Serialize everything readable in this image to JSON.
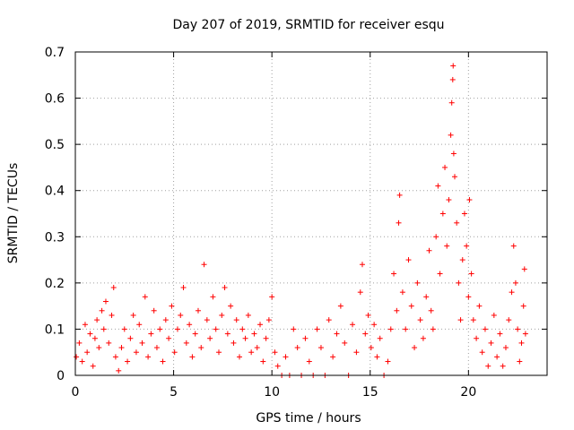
{
  "chart_data": {
    "type": "scatter",
    "title": "Day 207 of 2019, SRMTID for receiver esqu",
    "xlabel": "GPS time / hours",
    "ylabel": "SRMTID / TECUs",
    "xlim": [
      0,
      24
    ],
    "ylim": [
      0,
      0.7
    ],
    "x_ticks": [
      0,
      5,
      10,
      15,
      20
    ],
    "y_ticks": [
      0,
      0.1,
      0.2,
      0.3,
      0.4,
      0.5,
      0.6,
      0.7
    ],
    "x_tick_labels": [
      "0",
      "5",
      "10",
      "15",
      "20"
    ],
    "y_tick_labels": [
      "0",
      "0.1",
      "0.2",
      "0.3",
      "0.4",
      "0.5",
      "0.6",
      "0.7"
    ],
    "marker": "+",
    "color": "#ff0000",
    "grid": true,
    "series": [
      {
        "name": "SRMTID",
        "points": [
          [
            0.05,
            0.04
          ],
          [
            0.2,
            0.07
          ],
          [
            0.35,
            0.03
          ],
          [
            0.5,
            0.11
          ],
          [
            0.6,
            0.05
          ],
          [
            0.75,
            0.09
          ],
          [
            0.9,
            0.02
          ],
          [
            1.0,
            0.08
          ],
          [
            1.1,
            0.12
          ],
          [
            1.2,
            0.06
          ],
          [
            1.35,
            0.14
          ],
          [
            1.45,
            0.1
          ],
          [
            1.55,
            0.16
          ],
          [
            1.7,
            0.07
          ],
          [
            1.85,
            0.13
          ],
          [
            1.95,
            0.19
          ],
          [
            2.05,
            0.04
          ],
          [
            2.2,
            0.01
          ],
          [
            2.35,
            0.06
          ],
          [
            2.5,
            0.1
          ],
          [
            2.65,
            0.03
          ],
          [
            2.8,
            0.08
          ],
          [
            2.95,
            0.13
          ],
          [
            3.1,
            0.05
          ],
          [
            3.25,
            0.11
          ],
          [
            3.4,
            0.07
          ],
          [
            3.55,
            0.17
          ],
          [
            3.7,
            0.04
          ],
          [
            3.85,
            0.09
          ],
          [
            4.0,
            0.14
          ],
          [
            4.15,
            0.06
          ],
          [
            4.3,
            0.1
          ],
          [
            4.45,
            0.03
          ],
          [
            4.6,
            0.12
          ],
          [
            4.75,
            0.08
          ],
          [
            4.9,
            0.15
          ],
          [
            5.05,
            0.05
          ],
          [
            5.2,
            0.1
          ],
          [
            5.35,
            0.13
          ],
          [
            5.5,
            0.19
          ],
          [
            5.65,
            0.07
          ],
          [
            5.8,
            0.11
          ],
          [
            5.95,
            0.04
          ],
          [
            6.1,
            0.09
          ],
          [
            6.25,
            0.14
          ],
          [
            6.4,
            0.06
          ],
          [
            6.55,
            0.24
          ],
          [
            6.7,
            0.12
          ],
          [
            6.85,
            0.08
          ],
          [
            7.0,
            0.17
          ],
          [
            7.15,
            0.1
          ],
          [
            7.3,
            0.05
          ],
          [
            7.45,
            0.13
          ],
          [
            7.6,
            0.19
          ],
          [
            7.75,
            0.09
          ],
          [
            7.9,
            0.15
          ],
          [
            8.05,
            0.07
          ],
          [
            8.2,
            0.12
          ],
          [
            8.35,
            0.04
          ],
          [
            8.5,
            0.1
          ],
          [
            8.65,
            0.08
          ],
          [
            8.8,
            0.13
          ],
          [
            8.95,
            0.05
          ],
          [
            9.1,
            0.09
          ],
          [
            9.25,
            0.06
          ],
          [
            9.4,
            0.11
          ],
          [
            9.55,
            0.03
          ],
          [
            9.7,
            0.08
          ],
          [
            9.85,
            0.12
          ],
          [
            10.0,
            0.17
          ],
          [
            10.15,
            0.05
          ],
          [
            10.3,
            0.02
          ],
          [
            10.5,
            0.0
          ],
          [
            10.7,
            0.04
          ],
          [
            10.9,
            0.0
          ],
          [
            11.1,
            0.1
          ],
          [
            11.3,
            0.06
          ],
          [
            11.5,
            0.0
          ],
          [
            11.7,
            0.08
          ],
          [
            11.9,
            0.03
          ],
          [
            12.1,
            0.0
          ],
          [
            12.3,
            0.1
          ],
          [
            12.5,
            0.06
          ],
          [
            12.7,
            0.0
          ],
          [
            12.9,
            0.12
          ],
          [
            13.1,
            0.04
          ],
          [
            13.3,
            0.09
          ],
          [
            13.5,
            0.15
          ],
          [
            13.7,
            0.07
          ],
          [
            13.9,
            0.0
          ],
          [
            14.1,
            0.11
          ],
          [
            14.3,
            0.05
          ],
          [
            14.5,
            0.18
          ],
          [
            14.6,
            0.24
          ],
          [
            14.75,
            0.09
          ],
          [
            14.9,
            0.13
          ],
          [
            15.05,
            0.06
          ],
          [
            15.2,
            0.11
          ],
          [
            15.35,
            0.04
          ],
          [
            15.5,
            0.08
          ],
          [
            15.7,
            0.0
          ],
          [
            15.9,
            0.03
          ],
          [
            16.05,
            0.1
          ],
          [
            16.2,
            0.22
          ],
          [
            16.35,
            0.14
          ],
          [
            16.45,
            0.33
          ],
          [
            16.5,
            0.39
          ],
          [
            16.65,
            0.18
          ],
          [
            16.8,
            0.1
          ],
          [
            16.95,
            0.25
          ],
          [
            17.1,
            0.15
          ],
          [
            17.25,
            0.06
          ],
          [
            17.4,
            0.2
          ],
          [
            17.55,
            0.12
          ],
          [
            17.7,
            0.08
          ],
          [
            17.85,
            0.17
          ],
          [
            18.0,
            0.27
          ],
          [
            18.1,
            0.14
          ],
          [
            18.2,
            0.1
          ],
          [
            18.35,
            0.3
          ],
          [
            18.45,
            0.41
          ],
          [
            18.55,
            0.22
          ],
          [
            18.7,
            0.35
          ],
          [
            18.8,
            0.45
          ],
          [
            18.9,
            0.28
          ],
          [
            19.0,
            0.38
          ],
          [
            19.1,
            0.52
          ],
          [
            19.15,
            0.59
          ],
          [
            19.2,
            0.64
          ],
          [
            19.22,
            0.67
          ],
          [
            19.25,
            0.48
          ],
          [
            19.3,
            0.43
          ],
          [
            19.4,
            0.33
          ],
          [
            19.5,
            0.2
          ],
          [
            19.6,
            0.12
          ],
          [
            19.7,
            0.25
          ],
          [
            19.8,
            0.35
          ],
          [
            19.9,
            0.28
          ],
          [
            20.0,
            0.17
          ],
          [
            20.05,
            0.38
          ],
          [
            20.15,
            0.22
          ],
          [
            20.25,
            0.12
          ],
          [
            20.4,
            0.08
          ],
          [
            20.55,
            0.15
          ],
          [
            20.7,
            0.05
          ],
          [
            20.85,
            0.1
          ],
          [
            21.0,
            0.02
          ],
          [
            21.15,
            0.07
          ],
          [
            21.3,
            0.13
          ],
          [
            21.45,
            0.04
          ],
          [
            21.6,
            0.09
          ],
          [
            21.75,
            0.02
          ],
          [
            21.9,
            0.06
          ],
          [
            22.05,
            0.12
          ],
          [
            22.2,
            0.18
          ],
          [
            22.3,
            0.28
          ],
          [
            22.4,
            0.2
          ],
          [
            22.5,
            0.1
          ],
          [
            22.6,
            0.03
          ],
          [
            22.7,
            0.07
          ],
          [
            22.8,
            0.15
          ],
          [
            22.85,
            0.23
          ],
          [
            22.9,
            0.09
          ]
        ]
      }
    ]
  }
}
